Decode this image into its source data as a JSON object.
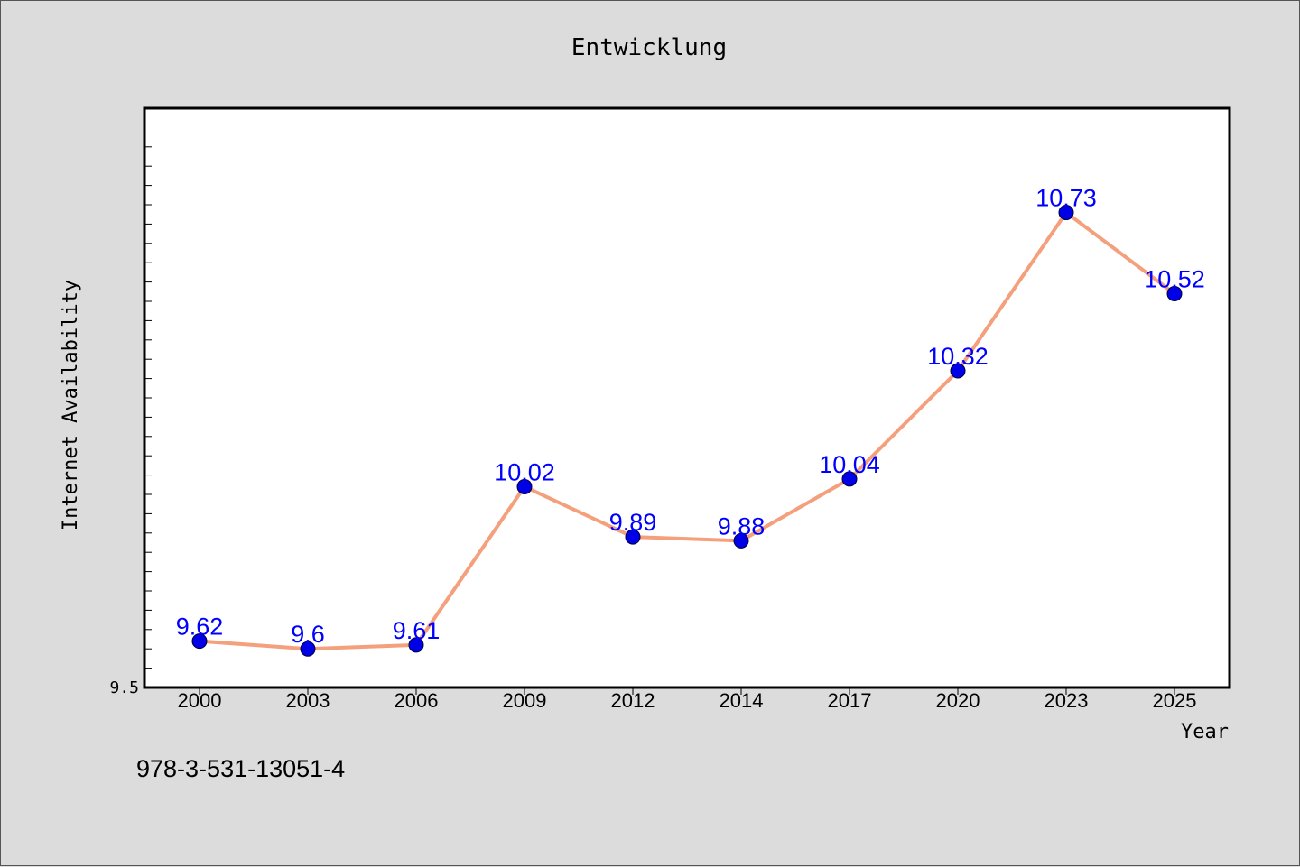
{
  "chart_data": {
    "type": "line",
    "title": "Entwicklung",
    "xlabel": "Year",
    "ylabel": "Internet Availability",
    "categories": [
      "2000",
      "2003",
      "2006",
      "2009",
      "2012",
      "2014",
      "2017",
      "2020",
      "2023",
      "2025"
    ],
    "values": [
      9.62,
      9.6,
      9.61,
      10.02,
      9.89,
      9.88,
      10.04,
      10.32,
      10.73,
      10.52
    ],
    "data_labels": [
      "9.62",
      "9.6",
      "9.61",
      "10.02",
      "9.89",
      "9.88",
      "10.04",
      "10.32",
      "10.73",
      "10.52"
    ],
    "y_tick_labels": [
      "9.5"
    ],
    "ylim": [
      9.5,
      11.0
    ],
    "grid": false,
    "line_color": "#f4a07c",
    "marker_color": "#0000e6",
    "label_color": "#0000ff"
  },
  "footer": {
    "code": "978-3-531-13051-4"
  }
}
